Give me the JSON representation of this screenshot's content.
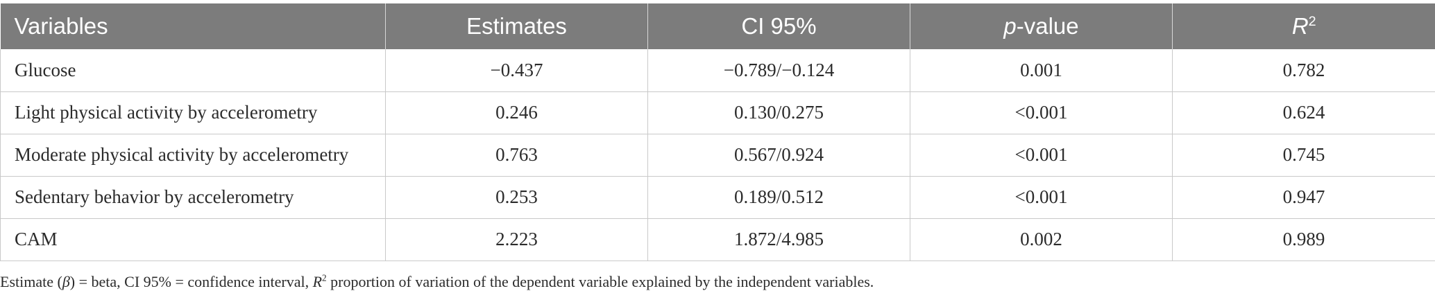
{
  "table": {
    "headers": {
      "variables": "Variables",
      "estimates": "Estimates",
      "ci": "CI 95%",
      "p_italic": "p",
      "p_rest": "-value",
      "r_letter": "R",
      "r_sup": "2"
    },
    "rows": [
      {
        "variable": "Glucose",
        "estimate": "−0.437",
        "ci": "−0.789/−0.124",
        "p": "0.001",
        "r2": "0.782"
      },
      {
        "variable": "Light physical activity by accelerometry",
        "estimate": "0.246",
        "ci": "0.130/0.275",
        "p": "<0.001",
        "r2": "0.624"
      },
      {
        "variable": "Moderate physical activity by accelerometry",
        "estimate": "0.763",
        "ci": "0.567/0.924",
        "p": "<0.001",
        "r2": "0.745"
      },
      {
        "variable": "Sedentary behavior by accelerometry",
        "estimate": "0.253",
        "ci": "0.189/0.512",
        "p": "<0.001",
        "r2": "0.947"
      },
      {
        "variable": "CAM",
        "estimate": "2.223",
        "ci": "1.872/4.985",
        "p": "0.002",
        "r2": "0.989"
      }
    ]
  },
  "footnote": {
    "part1": "Estimate (",
    "beta": "β",
    "part2": ") = beta, CI 95% = confidence interval, ",
    "r_letter": "R",
    "r_sup": "2",
    "part3": " proportion of variation of the dependent variable explained by the independent variables."
  },
  "colors": {
    "header_bg": "#7c7c7c",
    "header_text": "#ffffff",
    "body_text": "#2b2b2b",
    "rule": "#c9c9c9"
  }
}
